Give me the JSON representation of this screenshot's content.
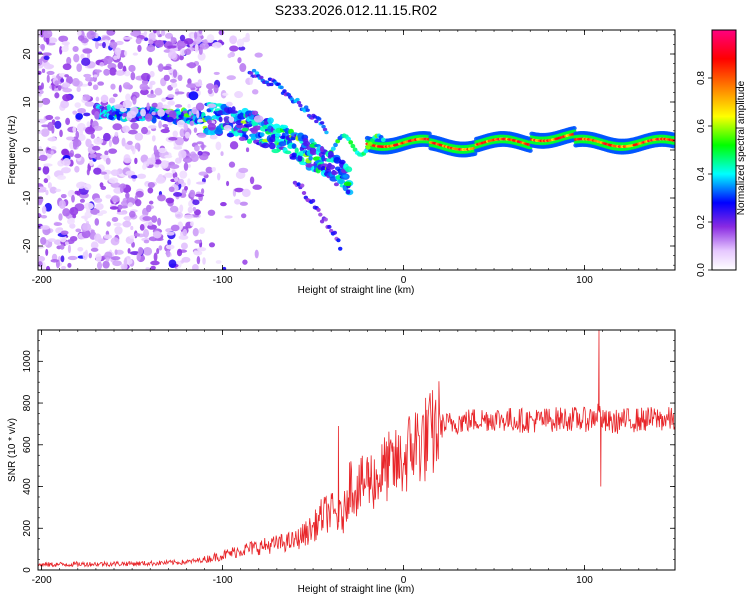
{
  "title": "S233.2026.012.11.15.R02",
  "chart_data": [
    {
      "type": "heatmap",
      "xlabel": "Height of straight line (km)",
      "ylabel": "Frequency (Hz)",
      "xlim": [
        -202,
        150
      ],
      "ylim": [
        -25,
        25
      ],
      "xticks": [
        -200,
        -100,
        0,
        100
      ],
      "yticks": [
        -20,
        -10,
        0,
        10,
        20
      ],
      "colorbar": {
        "label": "Normalized spectral amplitude",
        "range": [
          0,
          1
        ],
        "ticks": [
          "0.0",
          "0.2",
          "0.4",
          "0.6",
          "0.8"
        ],
        "tick_values": [
          0.0,
          0.2,
          0.4,
          0.6,
          0.8
        ]
      },
      "features": [
        {
          "name": "main-carrier",
          "x": [
            -20,
            150
          ],
          "freq_hz": 1.5,
          "amplitude": 0.9
        },
        {
          "name": "lower-doppler-branch",
          "x": [
            -170,
            -30
          ],
          "freq_hz": [
            8,
            -5
          ],
          "amplitude": 0.35
        },
        {
          "name": "upper-doppler-branch",
          "x": [
            -85,
            -42
          ],
          "freq_hz": [
            16,
            4
          ],
          "amplitude": 0.25
        },
        {
          "name": "upper-residual",
          "x": [
            -140,
            -100
          ],
          "freq_hz": 22,
          "amplitude": 0.2
        },
        {
          "name": "diffuse-noise",
          "x": [
            -202,
            -110
          ],
          "freq_hz": [
            -25,
            25
          ],
          "amplitude": 0.08
        }
      ]
    },
    {
      "type": "line",
      "xlabel": "Height of straight line (km)",
      "ylabel": "SNR (10 * v/v)",
      "xlim": [
        -202,
        150
      ],
      "ylim": [
        0,
        1150
      ],
      "xticks": [
        -200,
        -100,
        0,
        100
      ],
      "yticks": [
        0,
        200,
        400,
        600,
        800,
        1000
      ],
      "color": "#e8262a",
      "series": [
        {
          "name": "SNR",
          "x": [
            -202,
            -180,
            -160,
            -140,
            -120,
            -110,
            -100,
            -90,
            -80,
            -70,
            -60,
            -50,
            -45,
            -40,
            -36,
            -33,
            -30,
            -25,
            -20,
            -15,
            -10,
            -5,
            0,
            5,
            10,
            15,
            20,
            25,
            30,
            40,
            50,
            60,
            70,
            80,
            90,
            100,
            105,
            108,
            110,
            115,
            120,
            130,
            140,
            150
          ],
          "values": [
            25,
            28,
            30,
            32,
            38,
            50,
            70,
            95,
            110,
            125,
            140,
            200,
            260,
            280,
            250,
            260,
            420,
            380,
            440,
            430,
            490,
            500,
            520,
            600,
            620,
            640,
            690,
            700,
            710,
            720,
            725,
            720,
            715,
            720,
            725,
            720,
            730,
            760,
            710,
            705,
            715,
            720,
            725,
            720
          ]
        }
      ],
      "annotations": [
        {
          "x": -36,
          "value": 690,
          "label": "spike"
        },
        {
          "x": 108,
          "value": 1150,
          "label": "spike"
        },
        {
          "x": 109,
          "value": 400,
          "label": "dip"
        }
      ]
    }
  ]
}
